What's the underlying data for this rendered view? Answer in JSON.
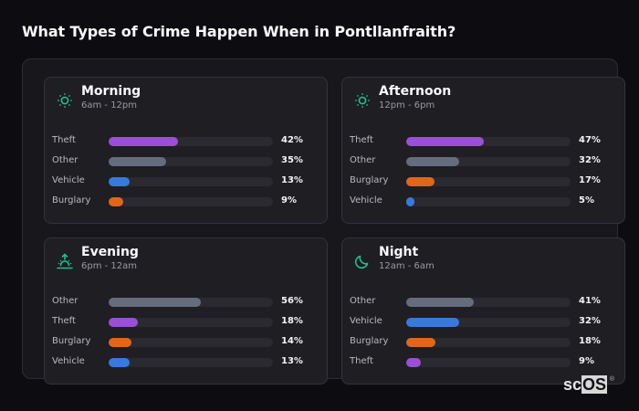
{
  "title": "What Types of Crime Happen When in Pontllanfraith?",
  "colors": {
    "Theft": "#9b4fd6",
    "Other": "#646d7e",
    "Vehicle": "#3a78de",
    "Burglary": "#e0661c",
    "icon": "#22c08a"
  },
  "cards": [
    {
      "name": "Morning",
      "range": "6am - 12pm",
      "icon": "sun-icon",
      "rows": [
        {
          "label": "Theft",
          "value": 42,
          "pct": "42%"
        },
        {
          "label": "Other",
          "value": 35,
          "pct": "35%"
        },
        {
          "label": "Vehicle",
          "value": 13,
          "pct": "13%"
        },
        {
          "label": "Burglary",
          "value": 9,
          "pct": "9%"
        }
      ]
    },
    {
      "name": "Afternoon",
      "range": "12pm - 6pm",
      "icon": "sun-icon",
      "rows": [
        {
          "label": "Theft",
          "value": 47,
          "pct": "47%"
        },
        {
          "label": "Other",
          "value": 32,
          "pct": "32%"
        },
        {
          "label": "Burglary",
          "value": 17,
          "pct": "17%"
        },
        {
          "label": "Vehicle",
          "value": 5,
          "pct": "5%"
        }
      ]
    },
    {
      "name": "Evening",
      "range": "6pm - 12am",
      "icon": "sunset-icon",
      "rows": [
        {
          "label": "Other",
          "value": 56,
          "pct": "56%"
        },
        {
          "label": "Theft",
          "value": 18,
          "pct": "18%"
        },
        {
          "label": "Burglary",
          "value": 14,
          "pct": "14%"
        },
        {
          "label": "Vehicle",
          "value": 13,
          "pct": "13%"
        }
      ]
    },
    {
      "name": "Night",
      "range": "12am - 6am",
      "icon": "moon-icon",
      "rows": [
        {
          "label": "Other",
          "value": 41,
          "pct": "41%"
        },
        {
          "label": "Vehicle",
          "value": 32,
          "pct": "32%"
        },
        {
          "label": "Burglary",
          "value": 18,
          "pct": "18%"
        },
        {
          "label": "Theft",
          "value": 9,
          "pct": "9%"
        }
      ]
    }
  ],
  "logo": {
    "sc": "sc",
    "os": "OS",
    "reg": "®"
  },
  "chart_data": {
    "type": "bar",
    "orientation": "horizontal",
    "title": "What Types of Crime Happen When in Pontllanfraith?",
    "xlabel": "",
    "ylabel": "",
    "xlim": [
      0,
      100
    ],
    "grid": false,
    "panels": [
      {
        "title": "Morning",
        "subtitle": "6am - 12pm",
        "categories": [
          "Theft",
          "Other",
          "Vehicle",
          "Burglary"
        ],
        "values": [
          42,
          35,
          13,
          9
        ]
      },
      {
        "title": "Afternoon",
        "subtitle": "12pm - 6pm",
        "categories": [
          "Theft",
          "Other",
          "Burglary",
          "Vehicle"
        ],
        "values": [
          47,
          32,
          17,
          5
        ]
      },
      {
        "title": "Evening",
        "subtitle": "6pm - 12am",
        "categories": [
          "Other",
          "Theft",
          "Burglary",
          "Vehicle"
        ],
        "values": [
          56,
          18,
          14,
          13
        ]
      },
      {
        "title": "Night",
        "subtitle": "12am - 6am",
        "categories": [
          "Other",
          "Vehicle",
          "Burglary",
          "Theft"
        ],
        "values": [
          41,
          32,
          18,
          9
        ]
      }
    ],
    "value_format": "percent"
  }
}
